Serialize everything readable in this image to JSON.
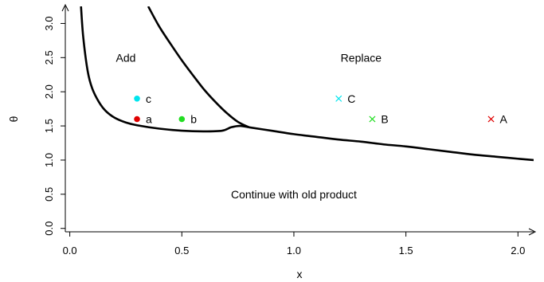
{
  "chart_data": {
    "type": "line",
    "xlabel": "x",
    "ylabel": "θ",
    "xlim": [
      -0.02,
      2.07
    ],
    "ylim": [
      -0.05,
      3.25
    ],
    "x_ticks": [
      0.0,
      0.5,
      1.0,
      1.5,
      2.0
    ],
    "x_tick_labels": [
      "0.0",
      "0.5",
      "1.0",
      "1.5",
      "2.0"
    ],
    "y_ticks": [
      0.0,
      0.5,
      1.0,
      1.5,
      2.0,
      2.5,
      3.0
    ],
    "y_tick_labels": [
      "0.0",
      "0.5",
      "1.0",
      "1.5",
      "2.0",
      "2.5",
      "3.0"
    ],
    "grid": false,
    "series": [
      {
        "color": "#000000",
        "x": [
          0.05,
          0.06,
          0.08,
          0.1,
          0.13,
          0.16,
          0.2,
          0.25,
          0.3,
          0.4,
          0.5,
          0.6,
          0.68,
          0.72,
          0.76,
          0.8
        ],
        "y": [
          3.25,
          2.8,
          2.3,
          2.05,
          1.85,
          1.72,
          1.62,
          1.55,
          1.51,
          1.46,
          1.43,
          1.42,
          1.43,
          1.48,
          1.5,
          1.48
        ]
      },
      {
        "color": "#000000",
        "x": [
          0.35,
          0.4,
          0.45,
          0.5,
          0.55,
          0.6,
          0.65,
          0.7,
          0.75,
          0.8
        ],
        "y": [
          3.25,
          2.95,
          2.7,
          2.46,
          2.24,
          2.03,
          1.85,
          1.69,
          1.56,
          1.48
        ]
      },
      {
        "color": "#000000",
        "x": [
          0.8,
          0.9,
          1.0,
          1.1,
          1.2,
          1.3,
          1.4,
          1.5,
          1.6,
          1.7,
          1.8,
          1.9,
          2.0,
          2.07
        ],
        "y": [
          1.48,
          1.43,
          1.38,
          1.34,
          1.3,
          1.27,
          1.23,
          1.2,
          1.16,
          1.12,
          1.08,
          1.05,
          1.02,
          1.0
        ]
      }
    ],
    "points": [
      {
        "label": "c",
        "x": 0.3,
        "y": 1.9,
        "marker": "dot",
        "color": "#00e5ee"
      },
      {
        "label": "a",
        "x": 0.3,
        "y": 1.6,
        "marker": "dot",
        "color": "#e00000"
      },
      {
        "label": "b",
        "x": 0.5,
        "y": 1.6,
        "marker": "dot",
        "color": "#22dd22"
      },
      {
        "label": "C",
        "x": 1.2,
        "y": 1.9,
        "marker": "x",
        "color": "#00e5ee"
      },
      {
        "label": "B",
        "x": 1.35,
        "y": 1.6,
        "marker": "x",
        "color": "#22dd22"
      },
      {
        "label": "A",
        "x": 1.88,
        "y": 1.6,
        "marker": "x",
        "color": "#e00000"
      }
    ],
    "annotations": [
      {
        "text": "Add",
        "x": 0.25,
        "y": 2.5
      },
      {
        "text": "Replace",
        "x": 1.3,
        "y": 2.5
      },
      {
        "text": "Continue with old product",
        "x": 1.0,
        "y": 0.5
      }
    ]
  }
}
